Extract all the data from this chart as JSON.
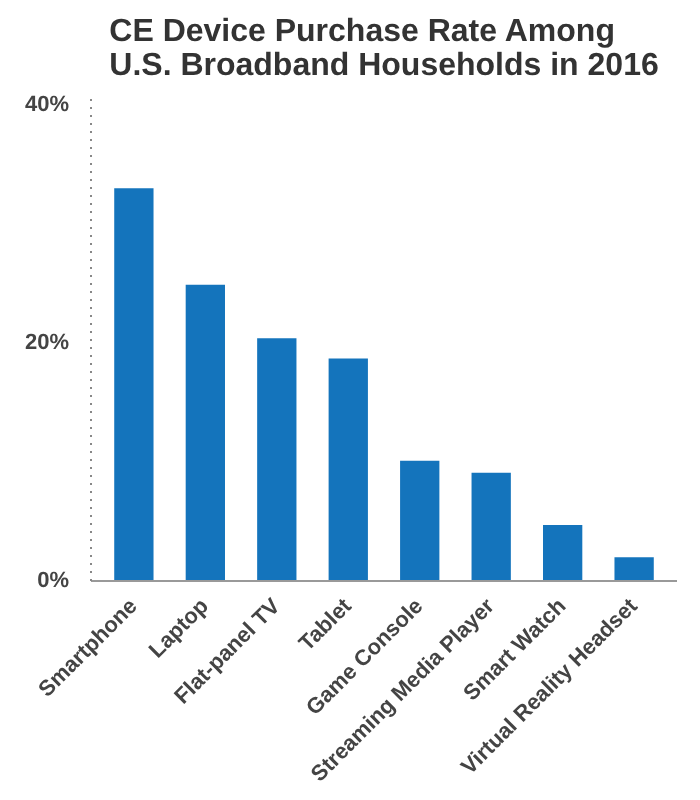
{
  "chart_data": {
    "type": "bar",
    "title": "CE Device Purchase Rate Among\nU.S. Broadband Households in 2016",
    "categories": [
      "Smartphone",
      "Laptop",
      "Flat-panel TV",
      "Tablet",
      "Game Console",
      "Streaming Media Player",
      "Smart Watch",
      "Virtual Reality Headset"
    ],
    "values": [
      33.0,
      24.9,
      20.4,
      18.7,
      10.1,
      9.1,
      4.7,
      2.0
    ],
    "color": "#1474bc",
    "ylim": [
      0,
      41
    ],
    "yticks": [
      {
        "value": 0,
        "label": "0%"
      },
      {
        "value": 20,
        "label": "20%"
      },
      {
        "value": 40,
        "label": "40%"
      }
    ],
    "grid": false
  }
}
